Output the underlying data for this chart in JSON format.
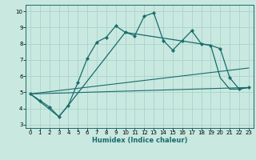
{
  "xlabel": "Humidex (Indice chaleur)",
  "xlim": [
    -0.5,
    23.5
  ],
  "ylim": [
    2.8,
    10.4
  ],
  "xticks": [
    0,
    1,
    2,
    3,
    4,
    5,
    6,
    7,
    8,
    9,
    10,
    11,
    12,
    13,
    14,
    15,
    16,
    17,
    18,
    19,
    20,
    21,
    22,
    23
  ],
  "yticks": [
    3,
    4,
    5,
    6,
    7,
    8,
    9,
    10
  ],
  "bg_color": "#c8e8e0",
  "grid_color": "#aad4cc",
  "line_color": "#1a6b6b",
  "line1_x": [
    0,
    1,
    2,
    3,
    4,
    5,
    6,
    7,
    8,
    9,
    10,
    11,
    12,
    13,
    14,
    15,
    16,
    17,
    18,
    19,
    20,
    21,
    22,
    23
  ],
  "line1_y": [
    4.9,
    4.5,
    4.1,
    3.5,
    4.2,
    5.6,
    7.1,
    8.1,
    8.4,
    9.1,
    8.7,
    8.5,
    9.7,
    9.9,
    8.2,
    7.6,
    8.2,
    8.8,
    8.0,
    7.9,
    7.7,
    5.9,
    5.2,
    5.3
  ],
  "line2_x": [
    0,
    3,
    4,
    10,
    19,
    20,
    21,
    22,
    23
  ],
  "line2_y": [
    4.9,
    3.5,
    4.2,
    8.7,
    7.9,
    5.9,
    5.2,
    5.2,
    5.3
  ],
  "line3_x": [
    0,
    23
  ],
  "line3_y": [
    4.9,
    6.5
  ],
  "line4_x": [
    0,
    23
  ],
  "line4_y": [
    4.9,
    5.3
  ],
  "xlabel_fontsize": 6.0,
  "tick_fontsize": 5.0,
  "marker": "D",
  "markersize": 2.2
}
